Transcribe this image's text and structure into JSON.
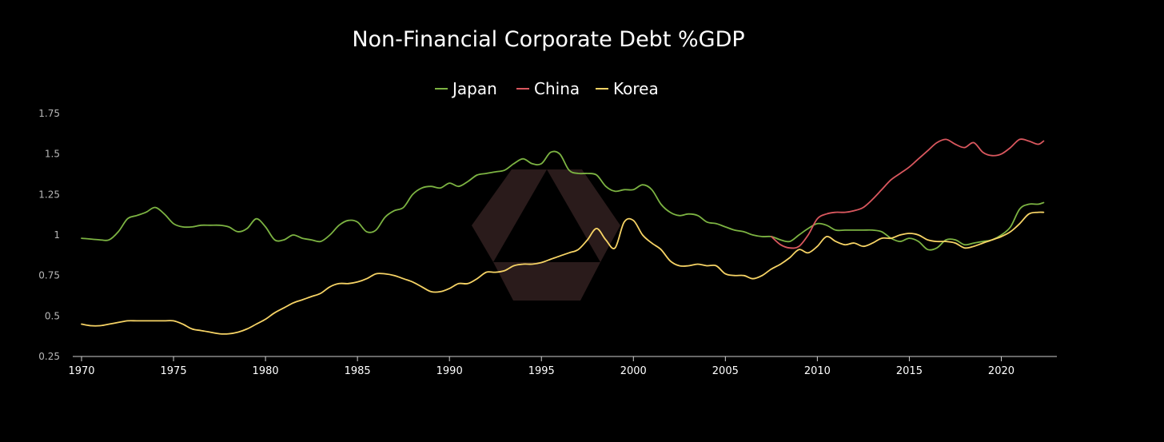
{
  "chart_data": {
    "type": "line",
    "title": "Non-Financial Corporate Debt %GDP",
    "xlabel": "",
    "ylabel": "",
    "xlim": [
      1970,
      2022.5
    ],
    "ylim": [
      0.25,
      1.75
    ],
    "legend_position": "top-center",
    "grid": false,
    "y_ticks": [
      {
        "value": 0.25,
        "label": "0.25"
      },
      {
        "value": 0.5,
        "label": "0.5"
      },
      {
        "value": 0.75,
        "label": "0.75"
      },
      {
        "value": 1,
        "label": "1"
      },
      {
        "value": 1.25,
        "label": "1.25"
      },
      {
        "value": 1.5,
        "label": "1.5"
      },
      {
        "value": 1.75,
        "label": "1.75"
      }
    ],
    "x_ticks": [
      {
        "value": 1970,
        "label": "1970"
      },
      {
        "value": 1975,
        "label": "1975"
      },
      {
        "value": 1980,
        "label": "1980"
      },
      {
        "value": 1985,
        "label": "1985"
      },
      {
        "value": 1990,
        "label": "1990"
      },
      {
        "value": 1995,
        "label": "1995"
      },
      {
        "value": 2000,
        "label": "2000"
      },
      {
        "value": 2005,
        "label": "2005"
      },
      {
        "value": 2010,
        "label": "2010"
      },
      {
        "value": 2015,
        "label": "2015"
      },
      {
        "value": 2020,
        "label": "2020"
      }
    ],
    "series": [
      {
        "name": "Japan",
        "color": "#7cb342",
        "points": [
          [
            1970,
            0.98
          ],
          [
            1971,
            0.97
          ],
          [
            1971.5,
            0.97
          ],
          [
            1972,
            1.02
          ],
          [
            1972.5,
            1.1
          ],
          [
            1973,
            1.12
          ],
          [
            1973.5,
            1.14
          ],
          [
            1974,
            1.17
          ],
          [
            1974.5,
            1.13
          ],
          [
            1975,
            1.07
          ],
          [
            1975.5,
            1.05
          ],
          [
            1976,
            1.05
          ],
          [
            1976.5,
            1.06
          ],
          [
            1977,
            1.06
          ],
          [
            1977.5,
            1.06
          ],
          [
            1978,
            1.05
          ],
          [
            1978.5,
            1.02
          ],
          [
            1979,
            1.04
          ],
          [
            1979.5,
            1.1
          ],
          [
            1980,
            1.05
          ],
          [
            1980.5,
            0.97
          ],
          [
            1981,
            0.97
          ],
          [
            1981.5,
            1.0
          ],
          [
            1982,
            0.98
          ],
          [
            1982.5,
            0.97
          ],
          [
            1983,
            0.96
          ],
          [
            1983.5,
            1.0
          ],
          [
            1984,
            1.06
          ],
          [
            1984.5,
            1.09
          ],
          [
            1985,
            1.08
          ],
          [
            1985.5,
            1.02
          ],
          [
            1986,
            1.03
          ],
          [
            1986.5,
            1.11
          ],
          [
            1987,
            1.15
          ],
          [
            1987.5,
            1.17
          ],
          [
            1988,
            1.25
          ],
          [
            1988.5,
            1.29
          ],
          [
            1989,
            1.3
          ],
          [
            1989.5,
            1.29
          ],
          [
            1990,
            1.32
          ],
          [
            1990.5,
            1.3
          ],
          [
            1991,
            1.33
          ],
          [
            1991.5,
            1.37
          ],
          [
            1992,
            1.38
          ],
          [
            1992.5,
            1.39
          ],
          [
            1993,
            1.4
          ],
          [
            1993.5,
            1.44
          ],
          [
            1994,
            1.47
          ],
          [
            1994.5,
            1.44
          ],
          [
            1995,
            1.44
          ],
          [
            1995.5,
            1.51
          ],
          [
            1996,
            1.5
          ],
          [
            1996.5,
            1.4
          ],
          [
            1997,
            1.38
          ],
          [
            1997.5,
            1.38
          ],
          [
            1998,
            1.37
          ],
          [
            1998.5,
            1.3
          ],
          [
            1999,
            1.27
          ],
          [
            1999.5,
            1.28
          ],
          [
            2000,
            1.28
          ],
          [
            2000.5,
            1.31
          ],
          [
            2001,
            1.28
          ],
          [
            2001.5,
            1.19
          ],
          [
            2002,
            1.14
          ],
          [
            2002.5,
            1.12
          ],
          [
            2003,
            1.13
          ],
          [
            2003.5,
            1.12
          ],
          [
            2004,
            1.08
          ],
          [
            2004.5,
            1.07
          ],
          [
            2005,
            1.05
          ],
          [
            2005.5,
            1.03
          ],
          [
            2006,
            1.02
          ],
          [
            2006.5,
            1.0
          ],
          [
            2007,
            0.99
          ],
          [
            2007.5,
            0.99
          ],
          [
            2008,
            0.97
          ],
          [
            2008.5,
            0.96
          ],
          [
            2009,
            1.0
          ],
          [
            2009.5,
            1.04
          ],
          [
            2010,
            1.07
          ],
          [
            2010.5,
            1.06
          ],
          [
            2011,
            1.03
          ],
          [
            2011.5,
            1.03
          ],
          [
            2012,
            1.03
          ],
          [
            2012.5,
            1.03
          ],
          [
            2013,
            1.03
          ],
          [
            2013.5,
            1.02
          ],
          [
            2014,
            0.98
          ],
          [
            2014.5,
            0.96
          ],
          [
            2015,
            0.98
          ],
          [
            2015.5,
            0.96
          ],
          [
            2016,
            0.91
          ],
          [
            2016.5,
            0.92
          ],
          [
            2017,
            0.97
          ],
          [
            2017.5,
            0.97
          ],
          [
            2018,
            0.94
          ],
          [
            2018.5,
            0.95
          ],
          [
            2019,
            0.96
          ],
          [
            2019.5,
            0.97
          ],
          [
            2020,
            1.0
          ],
          [
            2020.5,
            1.05
          ],
          [
            2021,
            1.16
          ],
          [
            2021.5,
            1.19
          ],
          [
            2022,
            1.19
          ],
          [
            2022.3,
            1.2
          ]
        ]
      },
      {
        "name": "China",
        "color": "#d9575e",
        "points": [
          [
            2007.5,
            0.99
          ],
          [
            2008,
            0.94
          ],
          [
            2008.5,
            0.92
          ],
          [
            2009,
            0.93
          ],
          [
            2009.5,
            1.0
          ],
          [
            2010,
            1.1
          ],
          [
            2010.5,
            1.13
          ],
          [
            2011,
            1.14
          ],
          [
            2011.5,
            1.14
          ],
          [
            2012,
            1.15
          ],
          [
            2012.5,
            1.17
          ],
          [
            2013,
            1.22
          ],
          [
            2013.5,
            1.28
          ],
          [
            2014,
            1.34
          ],
          [
            2014.5,
            1.38
          ],
          [
            2015,
            1.42
          ],
          [
            2015.5,
            1.47
          ],
          [
            2016,
            1.52
          ],
          [
            2016.5,
            1.57
          ],
          [
            2017,
            1.59
          ],
          [
            2017.5,
            1.56
          ],
          [
            2018,
            1.54
          ],
          [
            2018.5,
            1.57
          ],
          [
            2019,
            1.51
          ],
          [
            2019.5,
            1.49
          ],
          [
            2020,
            1.5
          ],
          [
            2020.5,
            1.54
          ],
          [
            2021,
            1.59
          ],
          [
            2021.5,
            1.58
          ],
          [
            2022,
            1.56
          ],
          [
            2022.3,
            1.58
          ]
        ]
      },
      {
        "name": "Korea",
        "color": "#f6d365",
        "points": [
          [
            1970,
            0.45
          ],
          [
            1970.5,
            0.44
          ],
          [
            1971,
            0.44
          ],
          [
            1971.5,
            0.45
          ],
          [
            1972,
            0.46
          ],
          [
            1972.5,
            0.47
          ],
          [
            1973,
            0.47
          ],
          [
            1973.5,
            0.47
          ],
          [
            1974,
            0.47
          ],
          [
            1974.5,
            0.47
          ],
          [
            1975,
            0.47
          ],
          [
            1975.5,
            0.45
          ],
          [
            1976,
            0.42
          ],
          [
            1976.5,
            0.41
          ],
          [
            1977,
            0.4
          ],
          [
            1977.5,
            0.39
          ],
          [
            1978,
            0.39
          ],
          [
            1978.5,
            0.4
          ],
          [
            1979,
            0.42
          ],
          [
            1979.5,
            0.45
          ],
          [
            1980,
            0.48
          ],
          [
            1980.5,
            0.52
          ],
          [
            1981,
            0.55
          ],
          [
            1981.5,
            0.58
          ],
          [
            1982,
            0.6
          ],
          [
            1982.5,
            0.62
          ],
          [
            1983,
            0.64
          ],
          [
            1983.5,
            0.68
          ],
          [
            1984,
            0.7
          ],
          [
            1984.5,
            0.7
          ],
          [
            1985,
            0.71
          ],
          [
            1985.5,
            0.73
          ],
          [
            1986,
            0.76
          ],
          [
            1986.5,
            0.76
          ],
          [
            1987,
            0.75
          ],
          [
            1987.5,
            0.73
          ],
          [
            1988,
            0.71
          ],
          [
            1988.5,
            0.68
          ],
          [
            1989,
            0.65
          ],
          [
            1989.5,
            0.65
          ],
          [
            1990,
            0.67
          ],
          [
            1990.5,
            0.7
          ],
          [
            1991,
            0.7
          ],
          [
            1991.5,
            0.73
          ],
          [
            1992,
            0.77
          ],
          [
            1992.5,
            0.77
          ],
          [
            1993,
            0.78
          ],
          [
            1993.5,
            0.81
          ],
          [
            1994,
            0.82
          ],
          [
            1994.5,
            0.82
          ],
          [
            1995,
            0.83
          ],
          [
            1995.5,
            0.85
          ],
          [
            1996,
            0.87
          ],
          [
            1996.5,
            0.89
          ],
          [
            1997,
            0.91
          ],
          [
            1997.5,
            0.97
          ],
          [
            1998,
            1.04
          ],
          [
            1998.5,
            0.97
          ],
          [
            1999,
            0.92
          ],
          [
            1999.5,
            1.08
          ],
          [
            2000,
            1.09
          ],
          [
            2000.5,
            1.0
          ],
          [
            2001,
            0.95
          ],
          [
            2001.5,
            0.91
          ],
          [
            2002,
            0.84
          ],
          [
            2002.5,
            0.81
          ],
          [
            2003,
            0.81
          ],
          [
            2003.5,
            0.82
          ],
          [
            2004,
            0.81
          ],
          [
            2004.5,
            0.81
          ],
          [
            2005,
            0.76
          ],
          [
            2005.5,
            0.75
          ],
          [
            2006,
            0.75
          ],
          [
            2006.5,
            0.73
          ],
          [
            2007,
            0.75
          ],
          [
            2007.5,
            0.79
          ],
          [
            2008,
            0.82
          ],
          [
            2008.5,
            0.86
          ],
          [
            2009,
            0.91
          ],
          [
            2009.5,
            0.89
          ],
          [
            2010,
            0.93
          ],
          [
            2010.5,
            0.99
          ],
          [
            2011,
            0.96
          ],
          [
            2011.5,
            0.94
          ],
          [
            2012,
            0.95
          ],
          [
            2012.5,
            0.93
          ],
          [
            2013,
            0.95
          ],
          [
            2013.5,
            0.98
          ],
          [
            2014,
            0.98
          ],
          [
            2014.5,
            1.0
          ],
          [
            2015,
            1.01
          ],
          [
            2015.5,
            1.0
          ],
          [
            2016,
            0.97
          ],
          [
            2016.5,
            0.96
          ],
          [
            2017,
            0.96
          ],
          [
            2017.5,
            0.95
          ],
          [
            2018,
            0.92
          ],
          [
            2018.5,
            0.93
          ],
          [
            2019,
            0.95
          ],
          [
            2019.5,
            0.97
          ],
          [
            2020,
            0.99
          ],
          [
            2020.5,
            1.02
          ],
          [
            2021,
            1.07
          ],
          [
            2021.5,
            1.13
          ],
          [
            2022,
            1.14
          ],
          [
            2022.3,
            1.14
          ]
        ]
      }
    ]
  }
}
